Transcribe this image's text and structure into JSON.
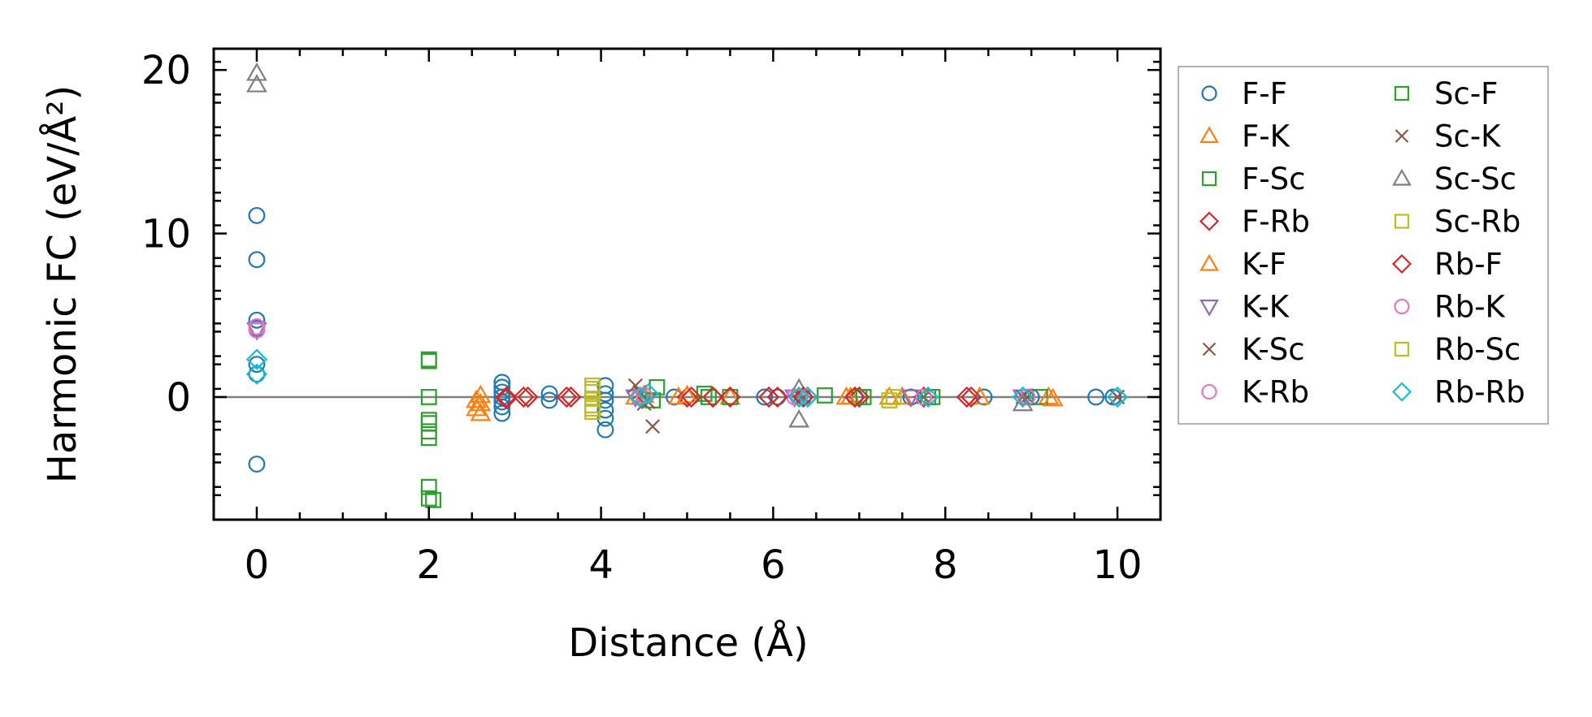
{
  "chart_data": {
    "type": "scatter",
    "xlabel": "Distance (Å)",
    "ylabel": "Harmonic FC (eV/Å²)",
    "xlim": [
      -0.5,
      10.5
    ],
    "ylim": [
      -7.5,
      21.3
    ],
    "xticks": [
      0,
      2,
      4,
      6,
      8,
      10
    ],
    "yticks": [
      0,
      10,
      20
    ],
    "xtick_labels": [
      "0",
      "2",
      "4",
      "6",
      "8",
      "10"
    ],
    "ytick_labels": [
      "0",
      "10",
      "20"
    ],
    "reference_line": 0,
    "grid": false,
    "legend": {
      "placement": "outside-right",
      "columns": 2
    },
    "series": [
      {
        "name": "F-F",
        "marker": "circle",
        "color": "#1f77b4",
        "points": [
          [
            0,
            11.1
          ],
          [
            0,
            8.4
          ],
          [
            0,
            4.7
          ],
          [
            0,
            4.2
          ],
          [
            0,
            2.0
          ],
          [
            0,
            1.4
          ],
          [
            0,
            -4.1
          ],
          [
            2.85,
            0.9
          ],
          [
            2.85,
            0.6
          ],
          [
            2.85,
            0.3
          ],
          [
            2.85,
            0.0
          ],
          [
            2.85,
            -0.3
          ],
          [
            2.85,
            -0.6
          ],
          [
            2.85,
            -1.0
          ],
          [
            3.4,
            0.2
          ],
          [
            3.4,
            -0.2
          ],
          [
            4.05,
            0.7
          ],
          [
            4.05,
            0.2
          ],
          [
            4.05,
            -0.2
          ],
          [
            4.05,
            -0.8
          ],
          [
            4.05,
            -1.3
          ],
          [
            4.05,
            -2.0
          ],
          [
            4.85,
            0.0
          ],
          [
            5.9,
            0.0
          ],
          [
            6.05,
            0.0
          ],
          [
            6.35,
            0.0
          ],
          [
            6.95,
            0.0
          ],
          [
            7.6,
            0.0
          ],
          [
            8.45,
            0.0
          ],
          [
            9.0,
            0.0
          ],
          [
            9.75,
            0.0
          ],
          [
            9.95,
            0.0
          ]
        ]
      },
      {
        "name": "F-K",
        "marker": "triangle-up",
        "color": "#ff7f0e",
        "points": [
          [
            2.55,
            -0.2
          ],
          [
            2.55,
            -0.7
          ],
          [
            2.6,
            0.1
          ],
          [
            4.4,
            0.0
          ],
          [
            4.9,
            0.0
          ],
          [
            5.5,
            0.0
          ],
          [
            6.9,
            0.0
          ],
          [
            7.5,
            0.0
          ],
          [
            8.4,
            0.0
          ],
          [
            9.2,
            0.0
          ]
        ]
      },
      {
        "name": "F-Sc",
        "marker": "square",
        "color": "#2ca02c",
        "points": [
          [
            2.0,
            2.3
          ],
          [
            2.0,
            0.0
          ],
          [
            2.0,
            -1.4
          ],
          [
            2.0,
            -2.5
          ],
          [
            2.0,
            -5.5
          ],
          [
            2.0,
            -6.2
          ],
          [
            4.65,
            0.6
          ],
          [
            5.2,
            0.2
          ],
          [
            5.5,
            0.0
          ],
          [
            6.6,
            0.1
          ],
          [
            7.0,
            0.0
          ],
          [
            7.8,
            0.0
          ],
          [
            9.1,
            0.0
          ]
        ]
      },
      {
        "name": "F-Rb",
        "marker": "diamond",
        "color": "#d62728",
        "points": [
          [
            2.9,
            0.0
          ],
          [
            3.15,
            0.0
          ],
          [
            3.6,
            0.0
          ],
          [
            5.0,
            0.0
          ],
          [
            5.3,
            0.0
          ],
          [
            5.5,
            0.0
          ],
          [
            5.95,
            0.0
          ],
          [
            6.4,
            0.0
          ],
          [
            7.0,
            0.0
          ],
          [
            7.75,
            0.0
          ],
          [
            8.25,
            0.0
          ]
        ]
      },
      {
        "name": "K-F",
        "marker": "triangle-up",
        "color": "#ff7f0e",
        "points": [
          [
            2.6,
            -0.4
          ],
          [
            2.6,
            -1.0
          ],
          [
            4.5,
            0.1
          ],
          [
            5.0,
            0.1
          ],
          [
            6.85,
            0.0
          ],
          [
            7.35,
            0.0
          ],
          [
            9.25,
            -0.1
          ]
        ]
      },
      {
        "name": "K-K",
        "marker": "triangle-down",
        "color": "#9467bd",
        "points": [
          [
            0,
            4.1
          ],
          [
            4.4,
            0.0
          ],
          [
            6.25,
            0.0
          ],
          [
            7.6,
            0.0
          ],
          [
            8.9,
            0.0
          ]
        ]
      },
      {
        "name": "K-Sc",
        "marker": "x",
        "color": "#8c564b",
        "points": [
          [
            4.4,
            0.7
          ],
          [
            4.6,
            -1.8
          ],
          [
            4.5,
            -0.4
          ],
          [
            6.3,
            0.1
          ],
          [
            7.75,
            0.0
          ],
          [
            8.95,
            0.0
          ],
          [
            10.0,
            0.0
          ]
        ]
      },
      {
        "name": "K-Rb",
        "marker": "circle",
        "color": "#e377c2",
        "points": [
          [
            0,
            4.1
          ],
          [
            4.45,
            0.0
          ],
          [
            6.25,
            0.0
          ],
          [
            7.75,
            0.0
          ],
          [
            8.95,
            0.0
          ]
        ]
      },
      {
        "name": "Sc-F",
        "marker": "square",
        "color": "#2ca02c",
        "points": [
          [
            2.0,
            2.2
          ],
          [
            2.0,
            -1.6
          ],
          [
            2.0,
            -2.1
          ],
          [
            2.05,
            -6.3
          ],
          [
            4.6,
            -0.2
          ],
          [
            5.25,
            0.0
          ],
          [
            7.05,
            0.0
          ],
          [
            7.85,
            0.0
          ]
        ]
      },
      {
        "name": "Sc-K",
        "marker": "x",
        "color": "#8c564b",
        "points": [
          [
            4.45,
            0.3
          ],
          [
            4.55,
            -0.3
          ],
          [
            6.35,
            0.0
          ],
          [
            8.9,
            0.0
          ],
          [
            10.0,
            0.0
          ]
        ]
      },
      {
        "name": "Sc-Sc",
        "marker": "triangle-up",
        "color": "#7f7f7f",
        "points": [
          [
            0,
            19.8
          ],
          [
            0,
            19.1
          ],
          [
            6.3,
            0.5
          ],
          [
            6.3,
            -1.4
          ],
          [
            8.9,
            -0.4
          ]
        ]
      },
      {
        "name": "Sc-Rb",
        "marker": "square",
        "color": "#bcbd22",
        "points": [
          [
            3.9,
            0.7
          ],
          [
            3.9,
            0.3
          ],
          [
            3.9,
            -0.1
          ],
          [
            3.9,
            -0.5
          ],
          [
            3.9,
            -0.9
          ],
          [
            7.35,
            -0.2
          ]
        ]
      },
      {
        "name": "Rb-F",
        "marker": "diamond",
        "color": "#d62728",
        "points": [
          [
            2.9,
            -0.1
          ],
          [
            3.1,
            0.0
          ],
          [
            3.65,
            0.0
          ],
          [
            5.05,
            0.0
          ],
          [
            5.3,
            0.0
          ],
          [
            6.05,
            0.0
          ],
          [
            6.35,
            0.0
          ],
          [
            6.95,
            0.0
          ],
          [
            8.3,
            0.0
          ]
        ]
      },
      {
        "name": "Rb-K",
        "marker": "circle",
        "color": "#e377c2",
        "points": [
          [
            0,
            4.3
          ],
          [
            4.5,
            0.1
          ],
          [
            6.3,
            0.0
          ]
        ]
      },
      {
        "name": "Rb-Sc",
        "marker": "square",
        "color": "#bcbd22",
        "points": [
          [
            3.9,
            0.5
          ],
          [
            3.9,
            -0.7
          ],
          [
            7.4,
            0.0
          ]
        ]
      },
      {
        "name": "Rb-Rb",
        "marker": "diamond",
        "color": "#17becf",
        "points": [
          [
            0,
            2.3
          ],
          [
            0,
            1.4
          ],
          [
            4.45,
            0.0
          ],
          [
            4.55,
            0.2
          ],
          [
            6.3,
            0.0
          ],
          [
            6.4,
            0.0
          ],
          [
            7.8,
            0.0
          ],
          [
            8.9,
            0.0
          ],
          [
            10.0,
            0.0
          ]
        ]
      }
    ]
  }
}
